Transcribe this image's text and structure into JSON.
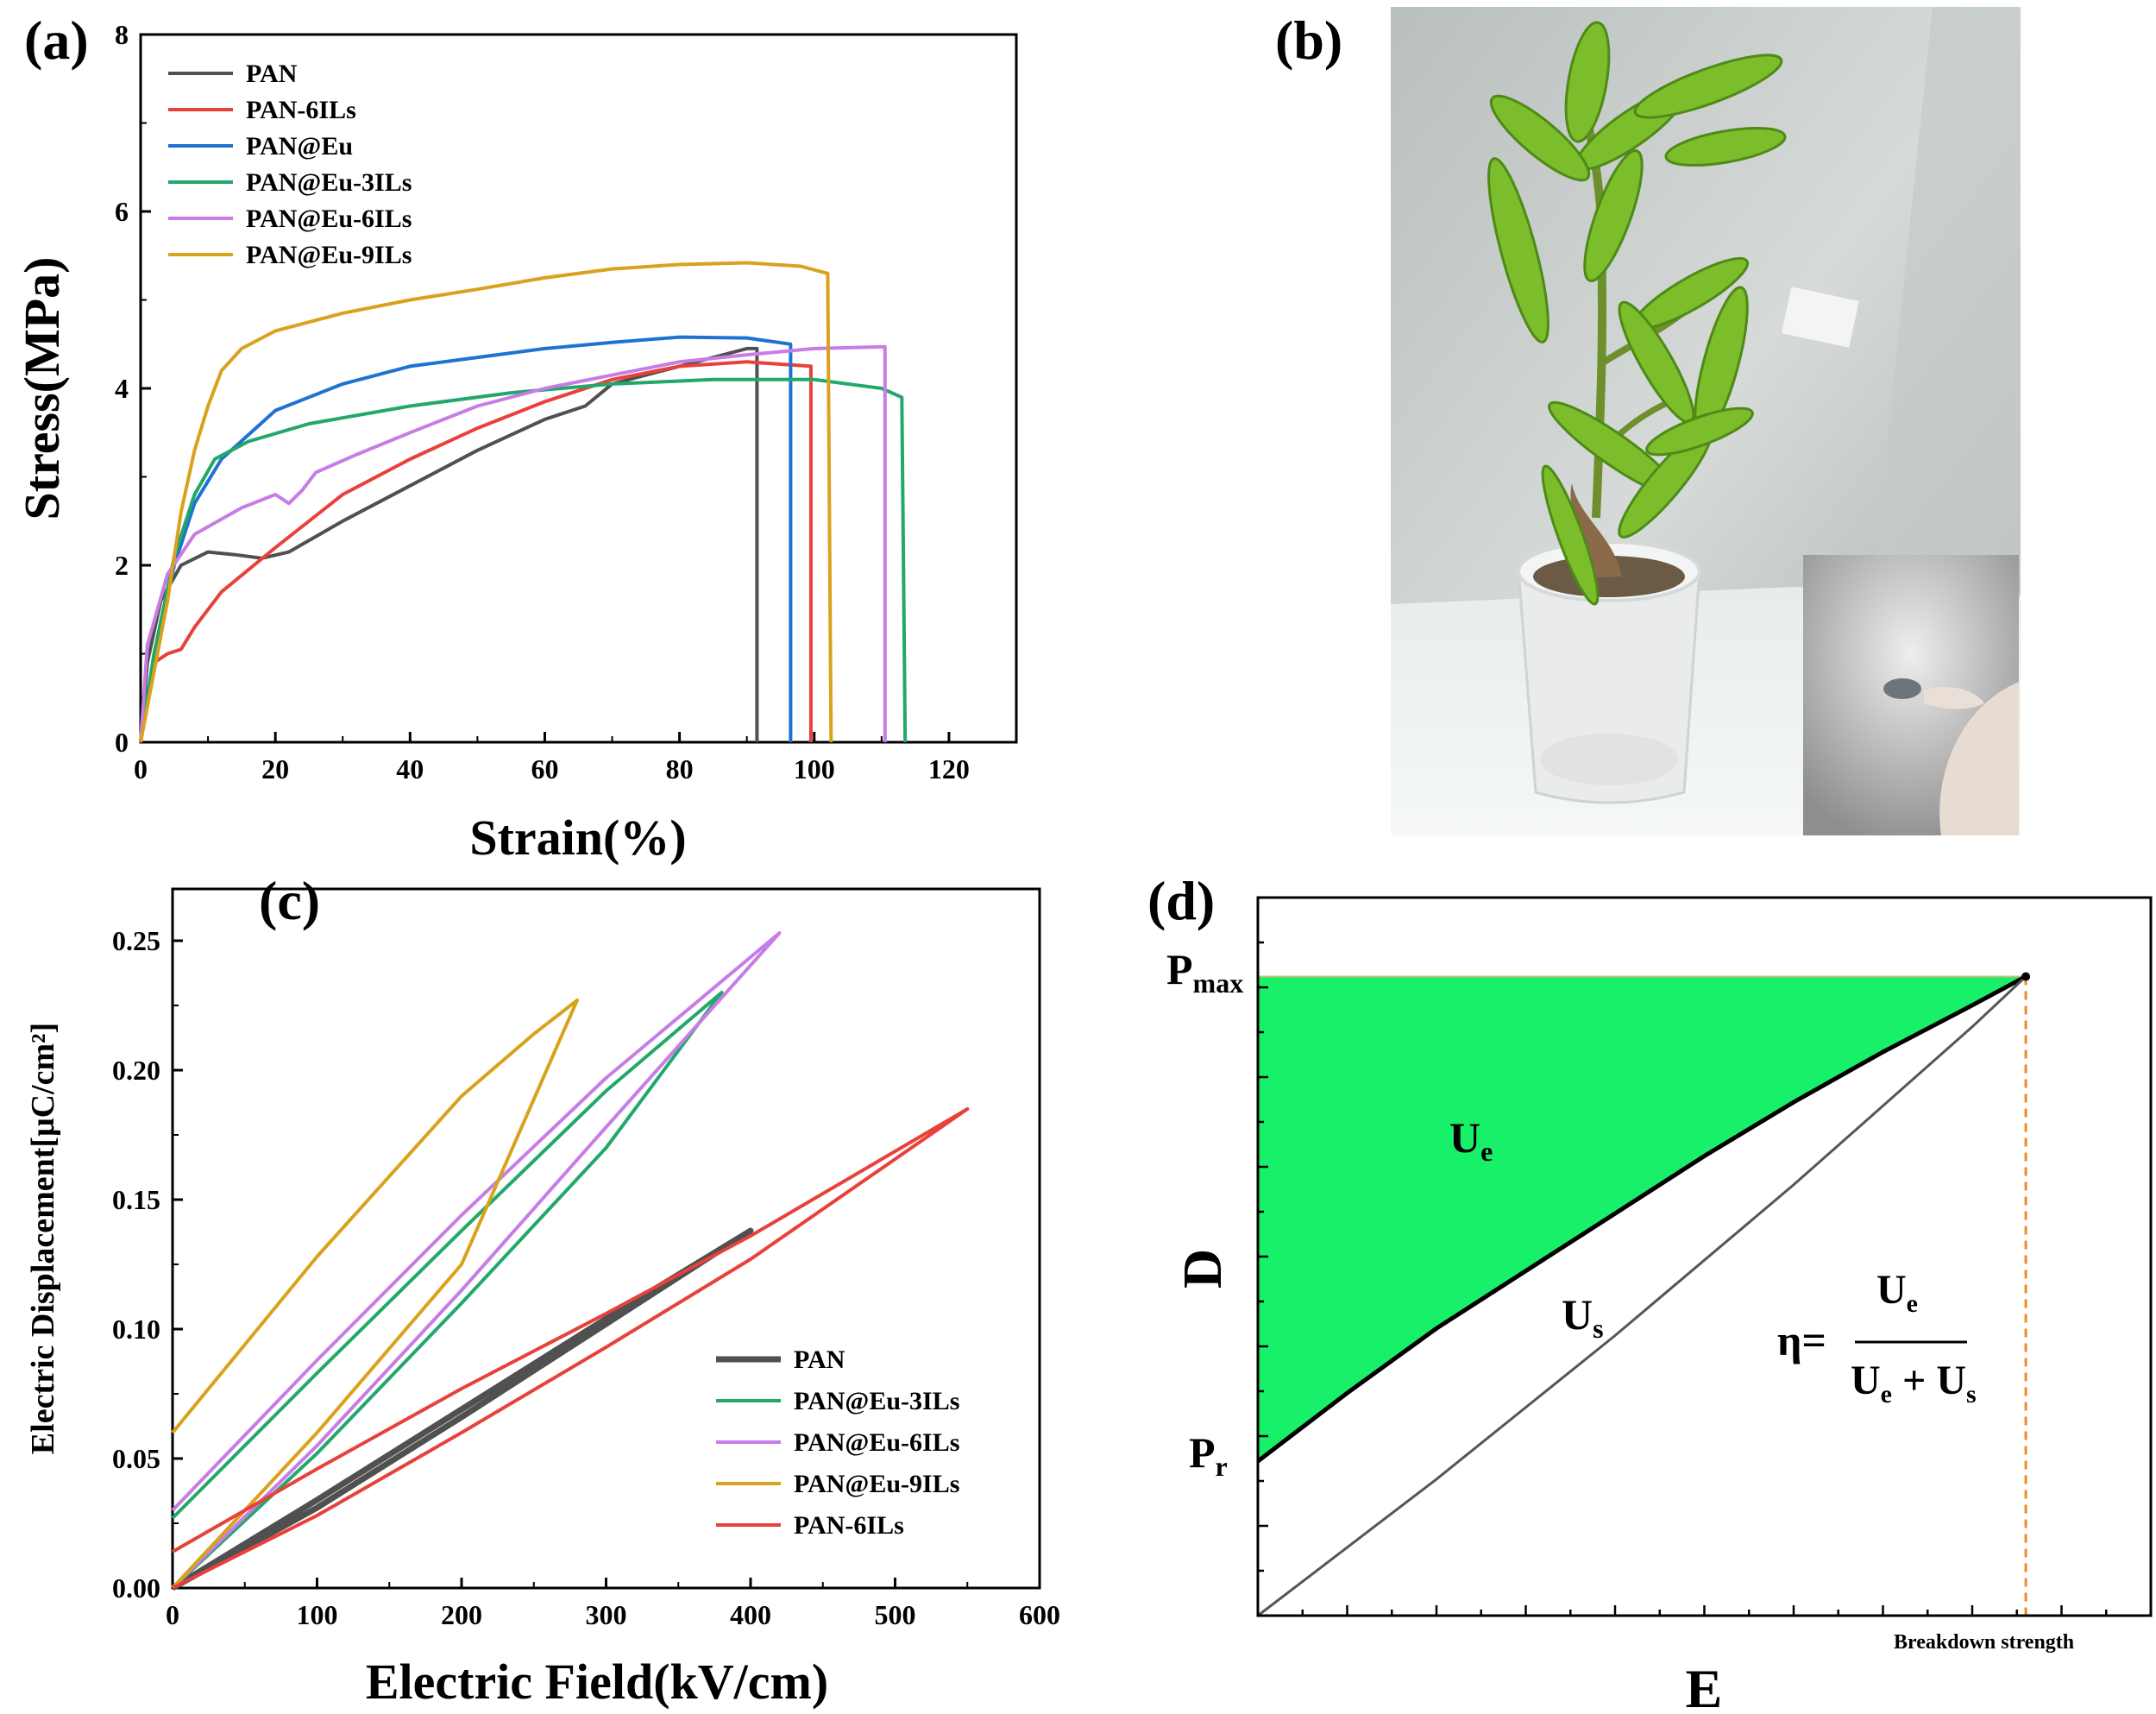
{
  "panels": {
    "a": "(a)",
    "b": "(b)",
    "c": "(c)",
    "d": "(d)"
  },
  "colors": {
    "PAN": "#505050",
    "PAN-6ILs": "#e8413a",
    "PAN@Eu": "#1e73d2",
    "PAN@Eu-3ILs": "#21a86a",
    "PAN@Eu-6ILs": "#c77ce6",
    "PAN@Eu-9ILs": "#d9a21c",
    "ue_fill": "#19f06a",
    "breakdown_line": "#f08a1e"
  },
  "photo": {
    "description_icons": [
      "plant-icon",
      "pot-icon",
      "glove-icon"
    ]
  },
  "chart_data": [
    {
      "id": "a",
      "type": "line",
      "title": "",
      "xlabel": "Strain(%)",
      "ylabel": "Stress(MPa)",
      "xlim": [
        0,
        130
      ],
      "ylim": [
        0,
        8
      ],
      "xticks": [
        0,
        20,
        40,
        60,
        80,
        100,
        120
      ],
      "yticks": [
        0,
        2,
        4,
        6,
        8
      ],
      "legend_position": "top-left",
      "series": [
        {
          "name": "PAN",
          "points": [
            [
              0,
              0
            ],
            [
              1,
              0.9
            ],
            [
              3,
              1.6
            ],
            [
              6,
              2.0
            ],
            [
              10,
              2.15
            ],
            [
              14,
              2.12
            ],
            [
              18,
              2.08
            ],
            [
              22,
              2.15
            ],
            [
              30,
              2.5
            ],
            [
              40,
              2.9
            ],
            [
              50,
              3.3
            ],
            [
              60,
              3.65
            ],
            [
              64,
              3.75
            ],
            [
              66,
              3.8
            ],
            [
              70,
              4.05
            ],
            [
              80,
              4.25
            ],
            [
              90,
              4.45
            ],
            [
              91.5,
              4.45
            ],
            [
              91.5,
              0
            ]
          ]
        },
        {
          "name": "PAN-6ILs",
          "points": [
            [
              0,
              0
            ],
            [
              2,
              0.9
            ],
            [
              4,
              1.0
            ],
            [
              6,
              1.05
            ],
            [
              8,
              1.3
            ],
            [
              12,
              1.7
            ],
            [
              20,
              2.2
            ],
            [
              30,
              2.8
            ],
            [
              40,
              3.2
            ],
            [
              50,
              3.55
            ],
            [
              60,
              3.85
            ],
            [
              70,
              4.1
            ],
            [
              80,
              4.25
            ],
            [
              90,
              4.3
            ],
            [
              99.5,
              4.25
            ],
            [
              99.5,
              0
            ]
          ]
        },
        {
          "name": "PAN@Eu",
          "points": [
            [
              0,
              0
            ],
            [
              2,
              1.0
            ],
            [
              5,
              2.0
            ],
            [
              8,
              2.7
            ],
            [
              12,
              3.2
            ],
            [
              20,
              3.75
            ],
            [
              30,
              4.05
            ],
            [
              40,
              4.25
            ],
            [
              50,
              4.35
            ],
            [
              60,
              4.45
            ],
            [
              70,
              4.52
            ],
            [
              80,
              4.58
            ],
            [
              90,
              4.57
            ],
            [
              96.5,
              4.5
            ],
            [
              96.5,
              0
            ]
          ]
        },
        {
          "name": "PAN@Eu-3ILs",
          "points": [
            [
              0,
              0
            ],
            [
              2,
              1.0
            ],
            [
              5,
              2.1
            ],
            [
              8,
              2.8
            ],
            [
              11,
              3.2
            ],
            [
              16,
              3.4
            ],
            [
              25,
              3.6
            ],
            [
              40,
              3.8
            ],
            [
              55,
              3.95
            ],
            [
              70,
              4.05
            ],
            [
              85,
              4.1
            ],
            [
              100,
              4.1
            ],
            [
              110,
              4.0
            ],
            [
              113,
              3.9
            ],
            [
              113.5,
              0
            ]
          ]
        },
        {
          "name": "PAN@Eu-6ILs",
          "points": [
            [
              0,
              0
            ],
            [
              1,
              1.1
            ],
            [
              4,
              1.9
            ],
            [
              8,
              2.35
            ],
            [
              15,
              2.65
            ],
            [
              20,
              2.8
            ],
            [
              21,
              2.75
            ],
            [
              22,
              2.7
            ],
            [
              24,
              2.85
            ],
            [
              26,
              3.05
            ],
            [
              32,
              3.25
            ],
            [
              40,
              3.5
            ],
            [
              50,
              3.8
            ],
            [
              60,
              4.0
            ],
            [
              70,
              4.15
            ],
            [
              80,
              4.3
            ],
            [
              90,
              4.38
            ],
            [
              100,
              4.45
            ],
            [
              110.5,
              4.47
            ],
            [
              110.5,
              0
            ]
          ]
        },
        {
          "name": "PAN@Eu-9ILs",
          "points": [
            [
              0,
              0
            ],
            [
              2,
              0.8
            ],
            [
              4,
              1.6
            ],
            [
              6,
              2.6
            ],
            [
              8,
              3.3
            ],
            [
              10,
              3.8
            ],
            [
              12,
              4.2
            ],
            [
              15,
              4.45
            ],
            [
              20,
              4.65
            ],
            [
              30,
              4.85
            ],
            [
              40,
              5.0
            ],
            [
              50,
              5.12
            ],
            [
              60,
              5.25
            ],
            [
              70,
              5.35
            ],
            [
              80,
              5.4
            ],
            [
              90,
              5.42
            ],
            [
              98,
              5.38
            ],
            [
              102,
              5.3
            ],
            [
              102.5,
              0
            ]
          ]
        }
      ]
    },
    {
      "id": "c",
      "type": "line",
      "title": "",
      "xlabel": "Electric Field(kV/cm)",
      "ylabel": "Electric Displacement[μC/cm²]",
      "xlim": [
        0,
        600
      ],
      "ylim": [
        0,
        0.27
      ],
      "xticks": [
        0,
        100,
        200,
        300,
        400,
        500,
        600
      ],
      "yticks": [
        0.0,
        0.05,
        0.1,
        0.15,
        0.2,
        0.25
      ],
      "legend_position": "bottom-right",
      "series": [
        {
          "name": "PAN",
          "points": [
            [
              0,
              0
            ],
            [
              100,
              0.034
            ],
            [
              200,
              0.069
            ],
            [
              300,
              0.104
            ],
            [
              400,
              0.138
            ],
            [
              300,
              0.102
            ],
            [
              200,
              0.066
            ],
            [
              100,
              0.031
            ],
            [
              0,
              0.0
            ]
          ]
        },
        {
          "name": "PAN@Eu-3ILs",
          "points": [
            [
              0,
              0
            ],
            [
              100,
              0.052
            ],
            [
              200,
              0.11
            ],
            [
              300,
              0.17
            ],
            [
              380,
              0.23
            ],
            [
              300,
              0.192
            ],
            [
              200,
              0.138
            ],
            [
              100,
              0.083
            ],
            [
              0,
              0.027
            ]
          ]
        },
        {
          "name": "PAN@Eu-6ILs",
          "points": [
            [
              0,
              0
            ],
            [
              100,
              0.055
            ],
            [
              200,
              0.115
            ],
            [
              300,
              0.178
            ],
            [
              420,
              0.253
            ],
            [
              300,
              0.197
            ],
            [
              200,
              0.144
            ],
            [
              100,
              0.088
            ],
            [
              0,
              0.03
            ]
          ]
        },
        {
          "name": "PAN@Eu-9ILs",
          "points": [
            [
              0,
              0
            ],
            [
              100,
              0.06
            ],
            [
              200,
              0.125
            ],
            [
              280,
              0.227
            ],
            [
              250,
              0.214
            ],
            [
              200,
              0.19
            ],
            [
              100,
              0.128
            ],
            [
              0,
              0.06
            ]
          ]
        },
        {
          "name": "PAN-6ILs",
          "points": [
            [
              0,
              0
            ],
            [
              100,
              0.028
            ],
            [
              200,
              0.06
            ],
            [
              300,
              0.093
            ],
            [
              400,
              0.127
            ],
            [
              550,
              0.185
            ],
            [
              400,
              0.136
            ],
            [
              300,
              0.106
            ],
            [
              200,
              0.077
            ],
            [
              100,
              0.046
            ],
            [
              0,
              0.014
            ]
          ]
        }
      ]
    },
    {
      "id": "d",
      "type": "area",
      "title": "",
      "xlabel": "E",
      "ylabel": "D",
      "labels": {
        "p_max": "P",
        "p_max_sub": "max",
        "p_r": "P",
        "p_r_sub": "r",
        "ue": "U",
        "ue_sub": "e",
        "us": "U",
        "us_sub": "s",
        "eta_lhs": "η=",
        "eta_num": "U",
        "eta_num_sub": "e",
        "eta_den_a": "U",
        "eta_den_a_sub": "e",
        "eta_den_plus": " + ",
        "eta_den_b": "U",
        "eta_den_b_sub": "s",
        "breakdown": "Breakdown strength"
      },
      "xlim": [
        0,
        1
      ],
      "ylim": [
        0,
        1
      ],
      "p_max": 0.89,
      "p_r": 0.17,
      "breakdown_strength": 0.86,
      "discharge_curve": [
        [
          0,
          0.215
        ],
        [
          0.1,
          0.31
        ],
        [
          0.2,
          0.4
        ],
        [
          0.3,
          0.48
        ],
        [
          0.4,
          0.56
        ],
        [
          0.5,
          0.64
        ],
        [
          0.6,
          0.715
        ],
        [
          0.7,
          0.785
        ],
        [
          0.8,
          0.85
        ],
        [
          0.86,
          0.89
        ]
      ],
      "charge_curve": [
        [
          0,
          0
        ],
        [
          0.2,
          0.19
        ],
        [
          0.4,
          0.39
        ],
        [
          0.6,
          0.6
        ],
        [
          0.8,
          0.82
        ],
        [
          0.86,
          0.89
        ]
      ]
    }
  ]
}
